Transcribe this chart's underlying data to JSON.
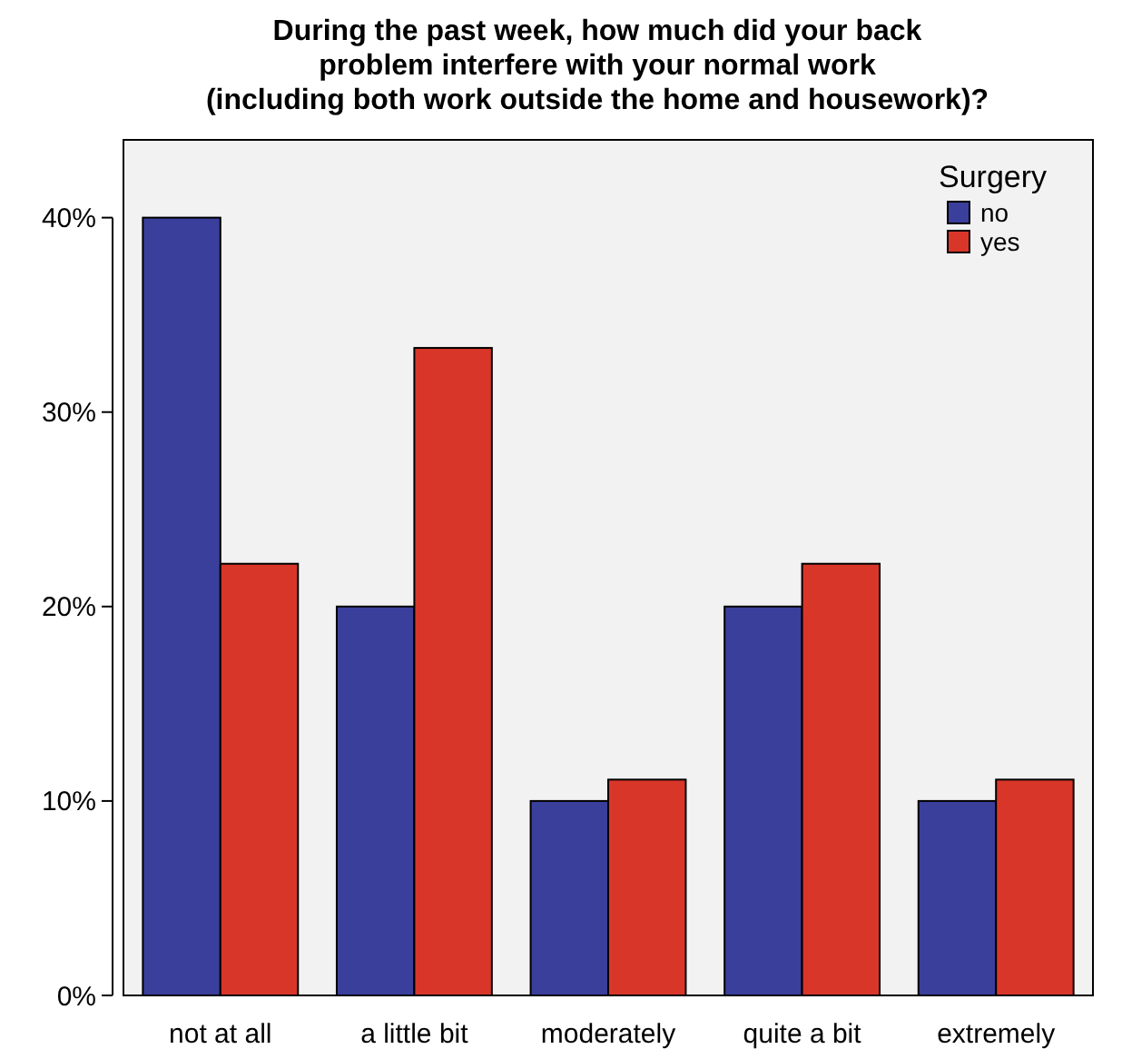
{
  "chart_data": {
    "type": "bar",
    "title": "During the past week, how much did your back\nproblem interfere with your normal work\n(including both work outside the home and housework)?",
    "categories": [
      "not at all",
      "a little bit",
      "moderately",
      "quite a bit",
      "extremely"
    ],
    "series": [
      {
        "name": "no",
        "color": "#3a3f9c",
        "values": [
          40,
          20,
          10,
          20,
          10
        ]
      },
      {
        "name": "yes",
        "color": "#d9362a",
        "values": [
          22.2,
          33.3,
          11.1,
          22.2,
          11.1
        ]
      }
    ],
    "legend_title": "Surgery",
    "legend": "top right",
    "ylim": [
      0,
      44
    ],
    "yticks": [
      {
        "value": 0,
        "label": "0%"
      },
      {
        "value": 10,
        "label": "10%"
      },
      {
        "value": 20,
        "label": "20%"
      },
      {
        "value": 30,
        "label": "30%"
      },
      {
        "value": 40,
        "label": "40%"
      }
    ],
    "grid": false
  }
}
